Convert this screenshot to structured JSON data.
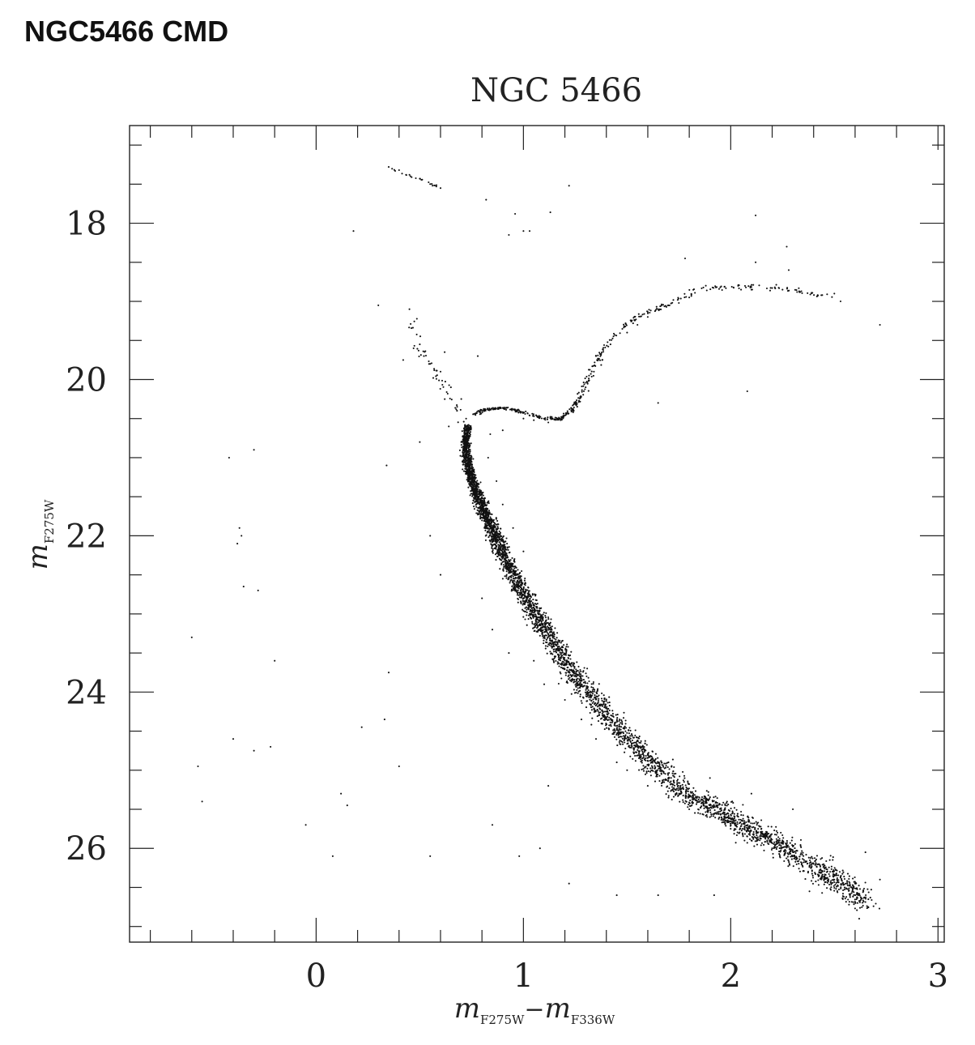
{
  "page": {
    "heading": "NGC5466 CMD"
  },
  "chart_data": {
    "type": "scatter",
    "title": "NGC 5466",
    "xlabel": {
      "base": "m",
      "sub1": "F275W",
      "minus": "−",
      "base2": "m",
      "sub2": "F336W"
    },
    "ylabel": {
      "base": "m",
      "sub": "F275W"
    },
    "xlim": [
      -0.9,
      3.03
    ],
    "ylim": [
      27.2,
      16.75
    ],
    "y_inverted": true,
    "x_ticks": [
      0,
      1,
      2,
      3
    ],
    "x_tick_labels": [
      "0",
      "1",
      "2",
      "3"
    ],
    "y_ticks": [
      18,
      20,
      22,
      24,
      26
    ],
    "y_tick_labels": [
      "18",
      "20",
      "22",
      "24",
      "26"
    ],
    "grid": false,
    "marker_color": "#111111",
    "sequences": {
      "main_sequence_ridge": [
        [
          0.73,
          20.6
        ],
        [
          0.72,
          20.9
        ],
        [
          0.74,
          21.2
        ],
        [
          0.78,
          21.5
        ],
        [
          0.83,
          21.8
        ],
        [
          0.88,
          22.1
        ],
        [
          0.95,
          22.5
        ],
        [
          1.03,
          22.9
        ],
        [
          1.13,
          23.3
        ],
        [
          1.25,
          23.8
        ],
        [
          1.4,
          24.3
        ],
        [
          1.58,
          24.8
        ],
        [
          1.78,
          25.3
        ],
        [
          2.0,
          25.6
        ],
        [
          2.2,
          25.9
        ],
        [
          2.45,
          26.3
        ],
        [
          2.65,
          26.7
        ]
      ],
      "subgiant_branch": [
        [
          0.76,
          20.45
        ],
        [
          0.82,
          20.38
        ],
        [
          0.9,
          20.36
        ],
        [
          1.0,
          20.42
        ],
        [
          1.1,
          20.5
        ],
        [
          1.18,
          20.5
        ],
        [
          1.24,
          20.38
        ],
        [
          1.28,
          20.2
        ]
      ],
      "red_giant_branch": [
        [
          1.28,
          20.2
        ],
        [
          1.32,
          19.95
        ],
        [
          1.37,
          19.7
        ],
        [
          1.45,
          19.4
        ],
        [
          1.55,
          19.2
        ],
        [
          1.68,
          19.05
        ],
        [
          1.85,
          18.85
        ],
        [
          2.05,
          18.8
        ],
        [
          2.3,
          18.85
        ],
        [
          2.5,
          18.95
        ]
      ],
      "blue_straggler_sequence": [
        [
          0.72,
          20.6
        ],
        [
          0.66,
          20.3
        ],
        [
          0.6,
          20.0
        ],
        [
          0.55,
          19.8
        ],
        [
          0.5,
          19.6
        ],
        [
          0.46,
          19.2
        ]
      ],
      "horizontal_branch": [
        [
          0.36,
          17.3
        ],
        [
          0.45,
          17.4
        ],
        [
          0.52,
          17.45
        ],
        [
          0.6,
          17.55
        ]
      ]
    },
    "sample_points": [
      [
        0.35,
        17.28
      ],
      [
        0.4,
        17.32
      ],
      [
        0.45,
        17.38
      ],
      [
        0.5,
        17.43
      ],
      [
        0.55,
        17.5
      ],
      [
        0.58,
        17.53
      ],
      [
        0.6,
        17.55
      ],
      [
        0.82,
        17.7
      ],
      [
        1.22,
        17.52
      ],
      [
        0.96,
        17.88
      ],
      [
        1.13,
        17.86
      ],
      [
        2.12,
        17.9
      ],
      [
        1.0,
        18.1
      ],
      [
        0.93,
        18.15
      ],
      [
        1.03,
        18.1
      ],
      [
        2.27,
        18.3
      ],
      [
        1.78,
        18.45
      ],
      [
        0.18,
        18.1
      ],
      [
        2.28,
        18.6
      ],
      [
        2.12,
        18.5
      ],
      [
        1.88,
        18.8
      ],
      [
        1.95,
        18.82
      ],
      [
        2.05,
        18.85
      ],
      [
        2.1,
        18.85
      ],
      [
        2.2,
        18.83
      ],
      [
        2.25,
        18.85
      ],
      [
        2.32,
        18.88
      ],
      [
        2.5,
        18.9
      ],
      [
        2.53,
        19.0
      ],
      [
        2.72,
        19.3
      ],
      [
        0.3,
        19.05
      ],
      [
        0.45,
        19.1
      ],
      [
        0.5,
        19.55
      ],
      [
        0.47,
        19.6
      ],
      [
        0.52,
        19.7
      ],
      [
        0.55,
        19.8
      ],
      [
        0.6,
        19.9
      ],
      [
        0.65,
        20.1
      ],
      [
        0.7,
        20.25
      ],
      [
        0.42,
        19.75
      ],
      [
        0.62,
        19.65
      ],
      [
        0.78,
        19.7
      ],
      [
        0.68,
        20.4
      ],
      [
        0.7,
        20.8
      ],
      [
        0.64,
        20.6
      ],
      [
        0.5,
        20.8
      ],
      [
        0.84,
        20.7
      ],
      [
        0.9,
        20.65
      ],
      [
        1.0,
        20.5
      ],
      [
        1.05,
        20.52
      ],
      [
        1.12,
        20.55
      ],
      [
        1.18,
        20.52
      ],
      [
        1.24,
        20.42
      ],
      [
        1.3,
        20.1
      ],
      [
        1.34,
        19.9
      ],
      [
        1.38,
        19.75
      ],
      [
        1.42,
        19.55
      ],
      [
        1.5,
        19.4
      ],
      [
        1.55,
        19.3
      ],
      [
        1.6,
        19.2
      ],
      [
        1.65,
        19.1
      ],
      [
        1.7,
        19.05
      ],
      [
        1.75,
        19.02
      ],
      [
        1.8,
        18.95
      ],
      [
        2.08,
        20.15
      ],
      [
        1.65,
        20.3
      ],
      [
        0.34,
        21.1
      ],
      [
        -0.42,
        21.0
      ],
      [
        -0.3,
        20.9
      ],
      [
        -0.37,
        21.9
      ],
      [
        -0.36,
        22.0
      ],
      [
        -0.38,
        22.1
      ],
      [
        -0.28,
        22.7
      ],
      [
        -0.35,
        22.65
      ],
      [
        0.83,
        21.0
      ],
      [
        0.87,
        21.3
      ],
      [
        0.9,
        21.6
      ],
      [
        0.95,
        21.9
      ],
      [
        1.0,
        22.2
      ],
      [
        0.55,
        22.0
      ],
      [
        0.6,
        22.5
      ],
      [
        0.8,
        22.8
      ],
      [
        0.85,
        23.2
      ],
      [
        0.93,
        23.5
      ],
      [
        1.05,
        23.6
      ],
      [
        1.1,
        23.9
      ],
      [
        1.2,
        24.1
      ],
      [
        1.28,
        24.35
      ],
      [
        1.35,
        24.6
      ],
      [
        1.45,
        24.9
      ],
      [
        1.5,
        25.0
      ],
      [
        1.6,
        25.2
      ],
      [
        1.7,
        25.35
      ],
      [
        1.8,
        25.5
      ],
      [
        1.9,
        25.6
      ],
      [
        2.0,
        25.75
      ],
      [
        2.1,
        25.9
      ],
      [
        2.2,
        26.0
      ],
      [
        2.3,
        26.1
      ],
      [
        2.4,
        26.2
      ],
      [
        2.5,
        26.35
      ],
      [
        2.6,
        26.45
      ],
      [
        2.65,
        26.05
      ],
      [
        2.72,
        26.4
      ],
      [
        2.3,
        25.5
      ],
      [
        2.1,
        25.3
      ],
      [
        1.9,
        25.1
      ],
      [
        1.7,
        24.9
      ],
      [
        -0.6,
        23.3
      ],
      [
        -0.2,
        23.6
      ],
      [
        0.35,
        23.75
      ],
      [
        0.33,
        24.35
      ],
      [
        0.22,
        24.45
      ],
      [
        -0.4,
        24.6
      ],
      [
        -0.22,
        24.7
      ],
      [
        -0.3,
        24.75
      ],
      [
        -0.57,
        24.95
      ],
      [
        0.4,
        24.95
      ],
      [
        -0.55,
        25.4
      ],
      [
        0.12,
        25.3
      ],
      [
        0.15,
        25.45
      ],
      [
        1.12,
        25.2
      ],
      [
        -0.05,
        25.7
      ],
      [
        0.85,
        25.7
      ],
      [
        0.55,
        26.1
      ],
      [
        0.08,
        26.1
      ],
      [
        1.08,
        26.0
      ],
      [
        1.65,
        26.6
      ],
      [
        1.92,
        26.6
      ],
      [
        2.45,
        26.4
      ],
      [
        2.55,
        26.5
      ],
      [
        2.62,
        26.9
      ],
      [
        2.38,
        26.55
      ],
      [
        1.22,
        26.45
      ],
      [
        0.98,
        26.1
      ],
      [
        1.45,
        26.6
      ]
    ]
  }
}
